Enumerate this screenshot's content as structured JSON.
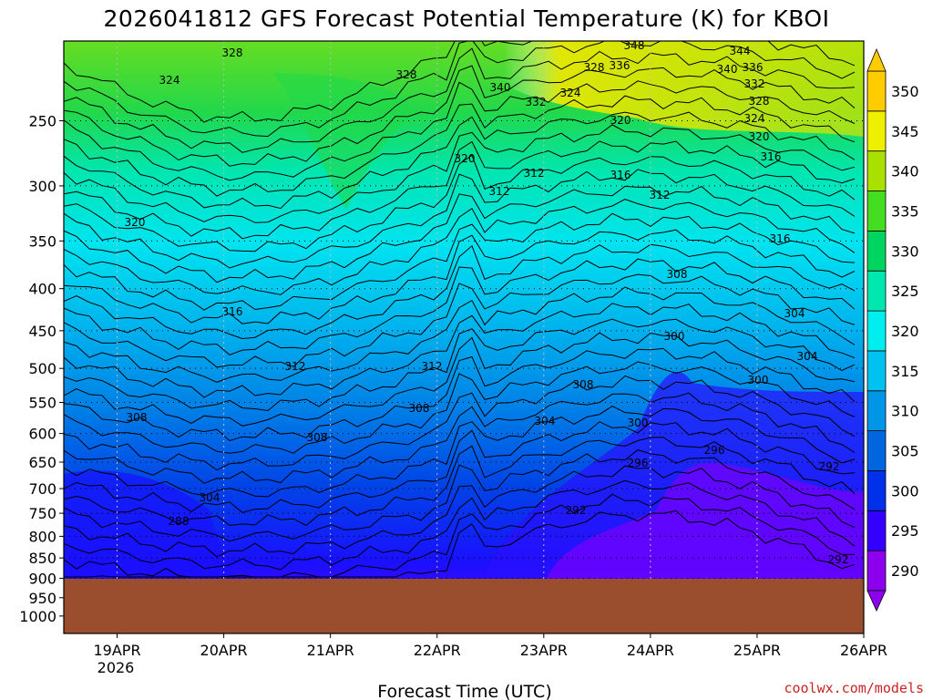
{
  "chart_data": {
    "type": "heatmap",
    "title": "2026041812 GFS Forecast Potential Temperature (K) for KBOI",
    "xlabel": "Forecast Time (UTC)",
    "credit": "coolwx.com/models",
    "y_ticks": [
      "250",
      "300",
      "350",
      "400",
      "450",
      "500",
      "550",
      "600",
      "650",
      "700",
      "750",
      "800",
      "850",
      "900",
      "950",
      "1000"
    ],
    "y_tick_values": [
      250,
      300,
      350,
      400,
      450,
      500,
      550,
      600,
      650,
      700,
      750,
      800,
      850,
      900,
      950,
      1000
    ],
    "x_ticks": [
      "19APR",
      "20APR",
      "21APR",
      "22APR",
      "23APR",
      "24APR",
      "25APR",
      "26APR"
    ],
    "x_tick_values": [
      "2026-04-19T00",
      "2026-04-20T00",
      "2026-04-21T00",
      "2026-04-22T00",
      "2026-04-23T00",
      "2026-04-24T00",
      "2026-04-25T00",
      "2026-04-26T00"
    ],
    "x_year_label": "2026",
    "xlim": [
      "2026-04-18T12",
      "2026-04-26T00"
    ],
    "ylim": [
      1050,
      200
    ],
    "colorbar": {
      "ticks": [
        "290",
        "295",
        "300",
        "305",
        "310",
        "315",
        "320",
        "325",
        "330",
        "335",
        "340",
        "345",
        "350"
      ],
      "values": [
        290,
        295,
        300,
        305,
        310,
        315,
        320,
        325,
        330,
        335,
        340,
        345,
        350
      ],
      "colors": [
        "#8c00ee",
        "#3300ff",
        "#0030ea",
        "#0066e0",
        "#0096e8",
        "#00c2f0",
        "#00eeee",
        "#00e8b0",
        "#00d460",
        "#44dd22",
        "#aae000",
        "#eef000",
        "#ffcc00"
      ]
    },
    "contour_labels": [
      "328",
      "324",
      "328",
      "340",
      "348",
      "344",
      "340",
      "336",
      "328",
      "336",
      "332",
      "324",
      "320",
      "332",
      "328",
      "324",
      "320",
      "316",
      "312",
      "316",
      "320",
      "312",
      "320",
      "316",
      "316",
      "308",
      "312",
      "312",
      "308",
      "312",
      "304",
      "308",
      "308",
      "304",
      "300",
      "296",
      "304",
      "300",
      "292",
      "296",
      "292",
      "300",
      "304",
      "308",
      "288",
      "292"
    ],
    "terrain_color": "#9a4e2e"
  }
}
